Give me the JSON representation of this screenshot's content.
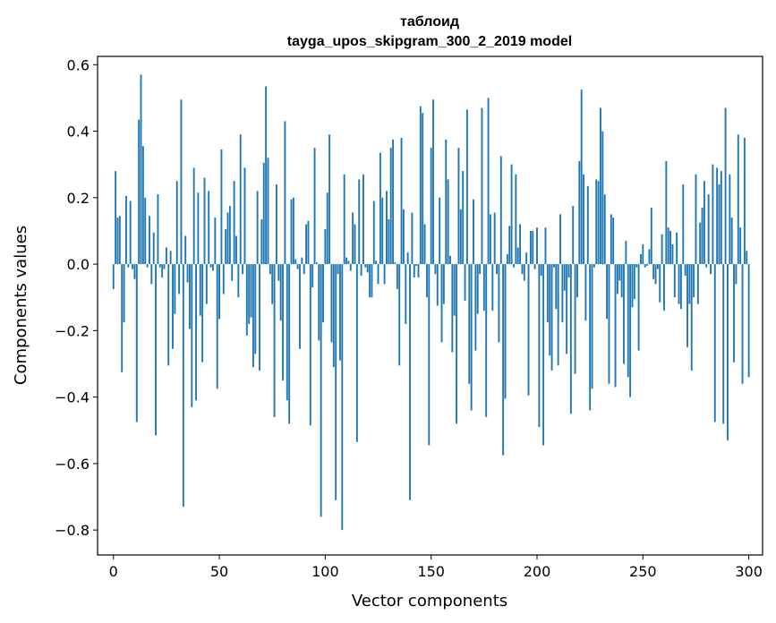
{
  "chart_data": {
    "type": "bar",
    "title": "таблоид",
    "subtitle": "tayga_upos_skipgram_300_2_2019 model",
    "xlabel": "Vector components",
    "ylabel": "Components values",
    "xlim": [
      -7.5,
      306.5
    ],
    "ylim": [
      -0.875,
      0.625
    ],
    "xticks": [
      0,
      50,
      100,
      150,
      200,
      250,
      300
    ],
    "xtick_labels": [
      "0",
      "50",
      "100",
      "150",
      "200",
      "250",
      "300"
    ],
    "yticks": [
      -0.8,
      -0.6,
      -0.4,
      -0.2,
      0.0,
      0.2,
      0.4,
      0.6
    ],
    "ytick_labels": [
      "−0.8",
      "−0.6",
      "−0.4",
      "−0.2",
      "0.0",
      "0.2",
      "0.4",
      "0.6"
    ],
    "grid": false,
    "color": "#1f77b4",
    "x_start": 0,
    "values": [
      -0.075,
      0.28,
      0.14,
      0.145,
      -0.325,
      -0.175,
      0.205,
      -0.01,
      0.19,
      -0.015,
      -0.045,
      -0.475,
      0.435,
      0.57,
      0.355,
      0.2,
      -0.01,
      0.145,
      -0.06,
      0.095,
      -0.515,
      0.21,
      -0.01,
      -0.04,
      -0.015,
      0.05,
      -0.305,
      0.04,
      -0.255,
      -0.15,
      0.25,
      -0.09,
      0.495,
      -0.73,
      0.085,
      -0.055,
      -0.195,
      -0.43,
      0.29,
      -0.41,
      0.215,
      -0.155,
      -0.295,
      0.26,
      -0.12,
      0.22,
      -0.01,
      -0.02,
      0.14,
      -0.375,
      -0.165,
      0.345,
      -0.09,
      0.105,
      0.155,
      0.175,
      -0.05,
      0.25,
      0.085,
      -0.1,
      0.39,
      -0.03,
      0.29,
      -0.215,
      -0.18,
      -0.16,
      -0.31,
      -0.27,
      0.22,
      -0.32,
      0.135,
      0.305,
      0.535,
      0.32,
      -0.03,
      -0.12,
      -0.46,
      0.24,
      -0.05,
      -0.17,
      -0.35,
      0.43,
      -0.41,
      -0.48,
      0.195,
      0.2,
      0.015,
      -0.015,
      -0.255,
      0.02,
      -0.03,
      0.12,
      0.13,
      -0.485,
      -0.07,
      0.35,
      0.005,
      -0.23,
      -0.76,
      -0.175,
      0.105,
      0.215,
      0.39,
      -0.235,
      -0.31,
      -0.71,
      -0.03,
      -0.29,
      -0.8,
      0.27,
      0.02,
      0.01,
      -0.02,
      0.155,
      0.12,
      -0.535,
      0.255,
      -0.035,
      0.27,
      -0.01,
      -0.025,
      -0.1,
      -0.1,
      0.19,
      0.01,
      -0.06,
      0.335,
      0.2,
      -0.06,
      0.22,
      0.135,
      0.35,
      0.375,
      0.005,
      -0.075,
      -0.305,
      0.38,
      0.165,
      -0.18,
      0.035,
      -0.71,
      0.155,
      -0.04,
      -0.005,
      -0.04,
      0.475,
      0.455,
      0.12,
      -0.1,
      -0.545,
      0.35,
      0.495,
      -0.03,
      -0.125,
      0.2,
      -0.235,
      -0.12,
      0.375,
      0.255,
      0.025,
      -0.265,
      -0.155,
      -0.48,
      0.35,
      0.165,
      0.28,
      -0.11,
      0.465,
      -0.36,
      -0.44,
      0.195,
      -0.26,
      -0.15,
      -0.03,
      0.47,
      -0.14,
      -0.46,
      0.5,
      0.15,
      -0.14,
      0.155,
      -0.03,
      -0.235,
      0.325,
      -0.575,
      -0.405,
      0.03,
      0.115,
      0.3,
      -0.01,
      0.27,
      0.05,
      0.12,
      -0.03,
      -0.05,
      0.035,
      -0.395,
      0.1,
      0.1,
      -0.015,
      0.11,
      -0.49,
      -0.035,
      -0.545,
      0.11,
      -0.175,
      -0.275,
      -0.32,
      -0.01,
      -0.135,
      -0.305,
      0.15,
      -0.175,
      -0.08,
      -0.27,
      -0.04,
      -0.45,
      0.175,
      -0.33,
      -0.1,
      0.31,
      0.525,
      0.27,
      -0.17,
      0.235,
      -0.44,
      -0.375,
      -0.01,
      0.255,
      0.25,
      0.47,
      0.4,
      0.21,
      -0.165,
      -0.36,
      0.15,
      0.14,
      -0.37,
      -0.09,
      -0.05,
      -0.1,
      -0.3,
      0.07,
      -0.34,
      -0.4,
      -0.13,
      -0.105,
      -0.01,
      -0.26,
      0.03,
      0.06,
      -0.01,
      -0.005,
      0.045,
      0.17,
      -0.045,
      -0.06,
      -0.015,
      -0.115,
      0.09,
      -0.14,
      0.31,
      0.11,
      0.1,
      0.06,
      -0.1,
      0.095,
      -0.12,
      -0.135,
      0.24,
      -0.035,
      -0.25,
      -0.12,
      -0.32,
      -0.1,
      0.27,
      -0.12,
      0.125,
      0.17,
      0.25,
      -0.01,
      0.21,
      -0.03,
      0.3,
      -0.475,
      0.29,
      0.24,
      0.28,
      -0.48,
      0.47,
      -0.53,
      0.27,
      0.14,
      -0.295,
      -0.06,
      0.39,
      0.11,
      -0.36,
      0.38,
      0.04,
      -0.34
    ]
  }
}
